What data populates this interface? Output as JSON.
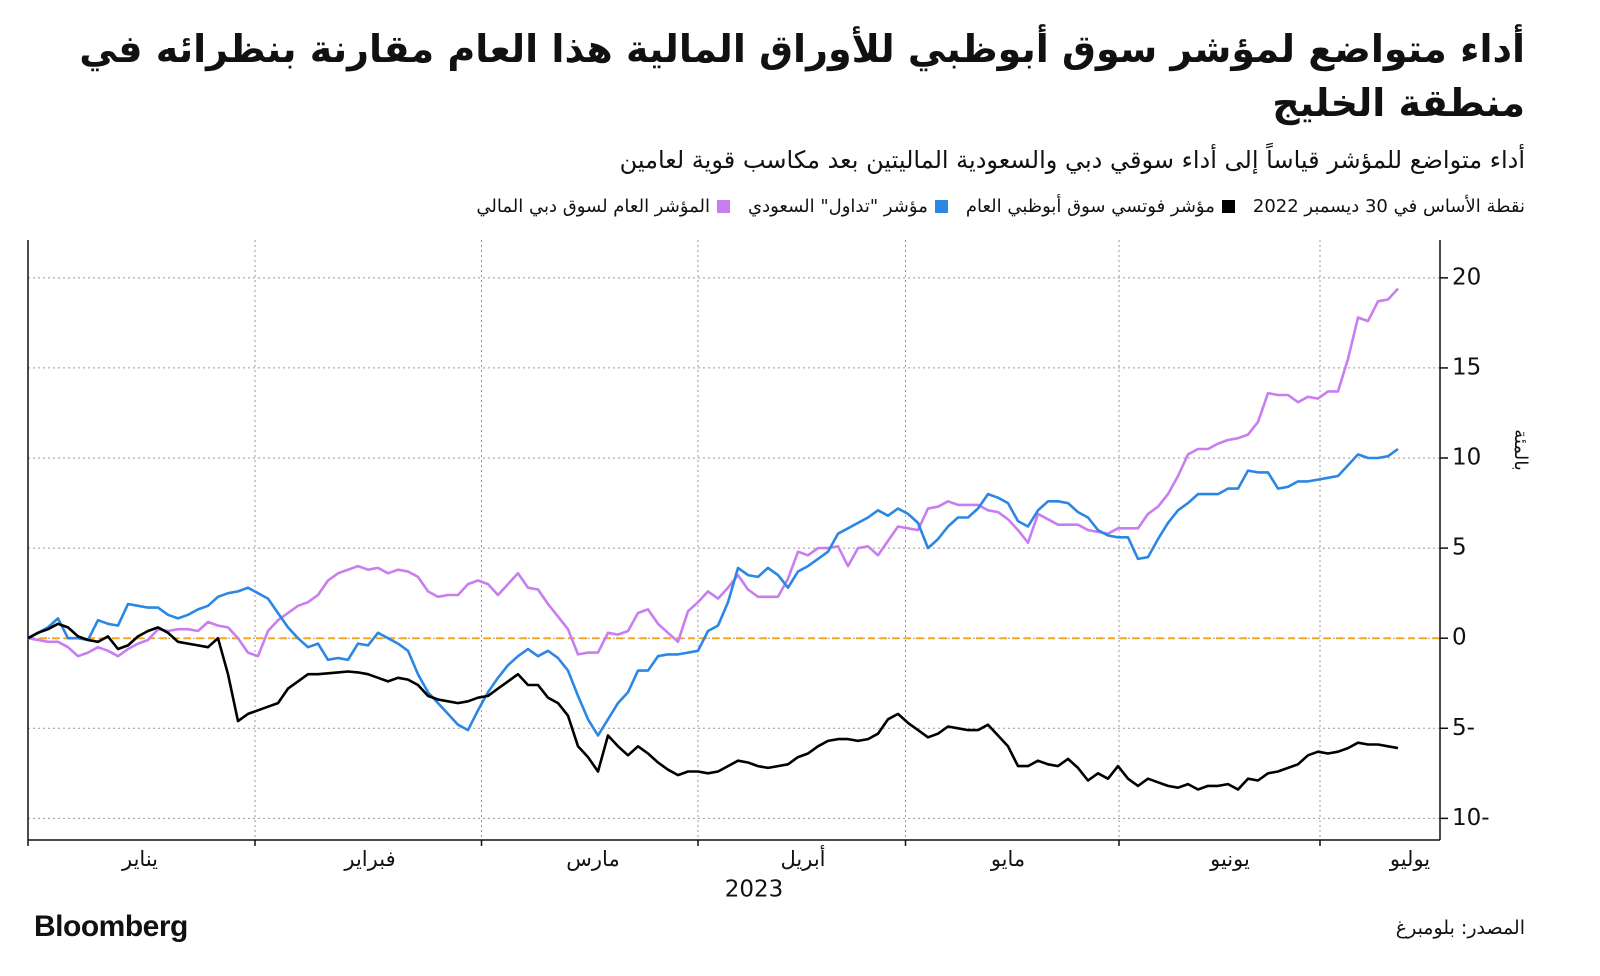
{
  "chart_data": {
    "type": "line",
    "title": "أداء متواضع لمؤشر سوق أبوظبي للأوراق المالية هذا العام مقارنة بنظرائه في منطقة الخليج",
    "subtitle": "أداء متواضع للمؤشر قياساً إلى أداء سوقي دبي والسعودية الماليتين بعد مكاسب قوية لعامين",
    "baseline": {
      "value": 0,
      "label": "نقطة الأساس في 30 ديسمبر 2022",
      "color": "#f5a623"
    },
    "ylabel": "بالمئة",
    "xlabel": "2023",
    "source": "المصدر: بلومبرغ",
    "brand": "Bloomberg",
    "xlim": [
      0,
      141.2
    ],
    "xticks": [
      {
        "value": 11.2,
        "label": "يناير"
      },
      {
        "value": 34.2,
        "label": "فبراير"
      },
      {
        "value": 56.5,
        "label": "مارس"
      },
      {
        "value": 77.5,
        "label": "أبريل"
      },
      {
        "value": 98,
        "label": "مايو"
      },
      {
        "value": 120.2,
        "label": "يونيو"
      },
      {
        "value": 138.2,
        "label": "يوليو"
      }
    ],
    "ylim": [
      -11.2,
      22.1
    ],
    "yticks": [
      {
        "value": -10,
        "label": "10-"
      },
      {
        "value": -5,
        "label": "5-"
      },
      0,
      5,
      10,
      15,
      20
    ],
    "grid": true,
    "series": [
      {
        "name": "مؤشر فوتسي سوق أبوظبي العام",
        "color": "#000000",
        "values": [
          0,
          0.3,
          0.5,
          0.8,
          0.6,
          0.1,
          -0.1,
          -0.2,
          0.1,
          -0.6,
          -0.4,
          0.1,
          0.4,
          0.6,
          0.3,
          -0.2,
          -0.3,
          -0.4,
          -0.5,
          0,
          -2,
          -4.6,
          -4.2,
          -4,
          -3.8,
          -3.6,
          -2.8,
          -2.4,
          -2,
          -2,
          -1.95,
          -1.9,
          -1.85,
          -1.9,
          -2,
          -2.2,
          -2.4,
          -2.2,
          -2.3,
          -2.6,
          -3.2,
          -3.4,
          -3.5,
          -3.6,
          -3.5,
          -3.3,
          -3.2,
          -2.8,
          -2.4,
          -2,
          -2.6,
          -2.6,
          -3.3,
          -3.6,
          -4.3,
          -6,
          -6.6,
          -7.4,
          -5.4,
          -6,
          -6.5,
          -6,
          -6.4,
          -6.9,
          -7.3,
          -7.6,
          -7.4,
          -7.4,
          -7.5,
          -7.4,
          -7.1,
          -6.8,
          -6.9,
          -7.1,
          -7.2,
          -7.1,
          -7,
          -6.6,
          -6.4,
          -6,
          -5.7,
          -5.6,
          -5.6,
          -5.7,
          -5.6,
          -5.3,
          -4.5,
          -4.2,
          -4.7,
          -5.1,
          -5.5,
          -5.3,
          -4.9,
          -5,
          -5.1,
          -5.1,
          -4.8,
          -5.4,
          -6,
          -7.1,
          -7.1,
          -6.8,
          -7,
          -7.1,
          -6.7,
          -7.2,
          -7.9,
          -7.5,
          -7.8,
          -7.1,
          -7.8,
          -8.2,
          -7.8,
          -8,
          -8.2,
          -8.3,
          -8.1,
          -8.4,
          -8.2,
          -8.2,
          -8.1,
          -8.4,
          -7.8,
          -7.9,
          -7.5,
          -7.4,
          -7.2,
          -7,
          -6.5,
          -6.3,
          -6.4,
          -6.3,
          -6.1,
          -5.8,
          -5.9,
          -5.9,
          -6,
          -6.1
        ]
      },
      {
        "name": "مؤشر \"تداول\" السعودي",
        "color": "#2b87e3",
        "values": [
          0,
          0.3,
          0.6,
          1.1,
          0,
          0,
          -0.1,
          1,
          0.8,
          0.7,
          1.9,
          1.8,
          1.7,
          1.7,
          1.3,
          1.1,
          1.3,
          1.6,
          1.8,
          2.3,
          2.5,
          2.6,
          2.8,
          2.5,
          2.2,
          1.4,
          0.6,
          0,
          -0.5,
          -0.3,
          -1.2,
          -1.1,
          -1.2,
          -0.3,
          -0.4,
          0.3,
          0,
          -0.3,
          -0.7,
          -2,
          -3,
          -3.6,
          -4.2,
          -4.8,
          -5.1,
          -4,
          -3,
          -2.2,
          -1.5,
          -1,
          -0.6,
          -1,
          -0.7,
          -1.1,
          -1.8,
          -3.2,
          -4.5,
          -5.4,
          -4.5,
          -3.6,
          -3,
          -1.8,
          -1.8,
          -1,
          -0.9,
          -0.9,
          -0.8,
          -0.7,
          0.4,
          0.7,
          2,
          3.9,
          3.5,
          3.4,
          3.9,
          3.5,
          2.8,
          3.7,
          4,
          4.4,
          4.8,
          5.8,
          6.1,
          6.4,
          6.7,
          7.1,
          6.8,
          7.2,
          6.9,
          6.4,
          5,
          5.5,
          6.2,
          6.7,
          6.7,
          7.2,
          8,
          7.8,
          7.5,
          6.5,
          6.2,
          7.1,
          7.6,
          7.6,
          7.5,
          7,
          6.7,
          6,
          5.7,
          5.6,
          5.6,
          4.4,
          4.5,
          5.5,
          6.4,
          7.1,
          7.5,
          8,
          8,
          8,
          8.3,
          8.3,
          9.3,
          9.2,
          9.2,
          8.3,
          8.4,
          8.7,
          8.7,
          8.8,
          8.9,
          9,
          9.6,
          10.2,
          10,
          10,
          10.1,
          10.5
        ]
      },
      {
        "name": "المؤشر العام لسوق دبي المالي",
        "color": "#c97ef0",
        "values": [
          0,
          -0.1,
          -0.2,
          -0.2,
          -0.5,
          -1,
          -0.8,
          -0.5,
          -0.7,
          -1,
          -0.6,
          -0.3,
          -0.1,
          0.5,
          0.4,
          0.5,
          0.5,
          0.4,
          0.9,
          0.7,
          0.6,
          0,
          -0.8,
          -1,
          0.4,
          1,
          1.4,
          1.8,
          2,
          2.4,
          3.2,
          3.6,
          3.8,
          4,
          3.8,
          3.9,
          3.6,
          3.8,
          3.7,
          3.4,
          2.6,
          2.3,
          2.4,
          2.4,
          3,
          3.2,
          3,
          2.4,
          3,
          3.6,
          2.8,
          2.7,
          1.9,
          1.2,
          0.5,
          -0.9,
          -0.8,
          -0.8,
          0.3,
          0.2,
          0.4,
          1.4,
          1.6,
          0.8,
          0.3,
          -0.2,
          1.5,
          2,
          2.6,
          2.2,
          2.8,
          3.5,
          2.7,
          2.3,
          2.3,
          2.3,
          3.3,
          4.8,
          4.6,
          5,
          5,
          5.1,
          4,
          5,
          5.1,
          4.6,
          5.4,
          6.2,
          6.1,
          6,
          7.2,
          7.3,
          7.6,
          7.4,
          7.4,
          7.4,
          7.1,
          7,
          6.6,
          6,
          5.3,
          6.9,
          6.6,
          6.3,
          6.3,
          6.3,
          6,
          5.9,
          5.8,
          6.1,
          6.1,
          6.1,
          6.9,
          7.3,
          8,
          9,
          10.2,
          10.5,
          10.5,
          10.8,
          11,
          11.1,
          11.3,
          12,
          13.6,
          13.5,
          13.5,
          13.1,
          13.4,
          13.3,
          13.7,
          13.7,
          15.5,
          17.8,
          17.6,
          18.7,
          18.8,
          19.4
        ]
      }
    ]
  }
}
